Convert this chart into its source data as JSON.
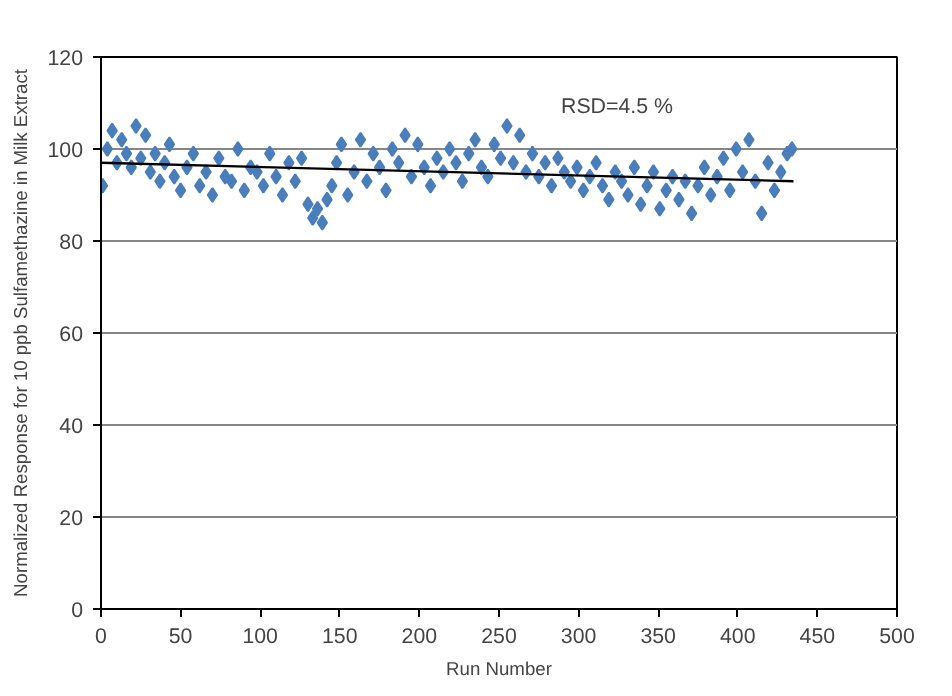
{
  "chart_data": {
    "type": "scatter",
    "ylabel": "Normalized Response for 10 ppb Sulfamethazine in Milk Extract",
    "xlabel": "Run Number",
    "annotations": [
      "RSD=4.5 %"
    ],
    "xlim": [
      0,
      500
    ],
    "ylim": [
      0,
      120
    ],
    "xticks": [
      0,
      50,
      100,
      150,
      200,
      250,
      300,
      350,
      400,
      450,
      500
    ],
    "yticks": [
      0,
      20,
      40,
      60,
      80,
      100,
      120
    ],
    "grid": "y",
    "series": [
      {
        "marker": "diamond",
        "color": "#4a7ebb",
        "x": [
          1,
          4,
          7,
          10,
          13,
          16,
          19,
          22,
          25,
          28,
          31,
          34,
          37,
          40,
          43,
          46,
          50,
          54,
          58,
          62,
          66,
          70,
          74,
          78,
          82,
          86,
          90,
          94,
          98,
          102,
          106,
          110,
          114,
          118,
          122,
          126,
          130,
          133,
          136,
          139,
          142,
          145,
          148,
          151,
          155,
          159,
          163,
          167,
          171,
          175,
          179,
          183,
          187,
          191,
          195,
          199,
          203,
          207,
          211,
          215,
          219,
          223,
          227,
          231,
          235,
          239,
          243,
          247,
          251,
          255,
          259,
          263,
          267,
          271,
          275,
          279,
          283,
          287,
          291,
          295,
          299,
          303,
          307,
          311,
          315,
          319,
          323,
          327,
          331,
          335,
          339,
          343,
          347,
          351,
          355,
          359,
          363,
          367,
          371,
          375,
          379,
          383,
          387,
          391,
          395,
          399,
          403,
          407,
          411,
          415,
          419,
          423,
          427,
          431,
          434
        ],
        "values": [
          92,
          100,
          104,
          97,
          102,
          99,
          96,
          105,
          98,
          103,
          95,
          99,
          93,
          97,
          101,
          94,
          91,
          96,
          99,
          92,
          95,
          90,
          98,
          94,
          93,
          100,
          91,
          96,
          95,
          92,
          99,
          94,
          90,
          97,
          93,
          98,
          88,
          85,
          87,
          84,
          89,
          92,
          97,
          101,
          90,
          95,
          102,
          93,
          99,
          96,
          91,
          100,
          97,
          103,
          94,
          101,
          96,
          92,
          98,
          95,
          100,
          97,
          93,
          99,
          102,
          96,
          94,
          101,
          98,
          105,
          97,
          103,
          95,
          99,
          94,
          97,
          92,
          98,
          95,
          93,
          96,
          91,
          94,
          97,
          92,
          89,
          95,
          93,
          90,
          96,
          88,
          92,
          95,
          87,
          91,
          94,
          89,
          93,
          86,
          92,
          96,
          90,
          94,
          98,
          91,
          100,
          95,
          102,
          93,
          86,
          97,
          91,
          95,
          99,
          100
        ]
      },
      {
        "type": "line",
        "marker": "none",
        "color": "#000000",
        "x": [
          0,
          435
        ],
        "values": [
          97,
          93
        ]
      }
    ]
  }
}
